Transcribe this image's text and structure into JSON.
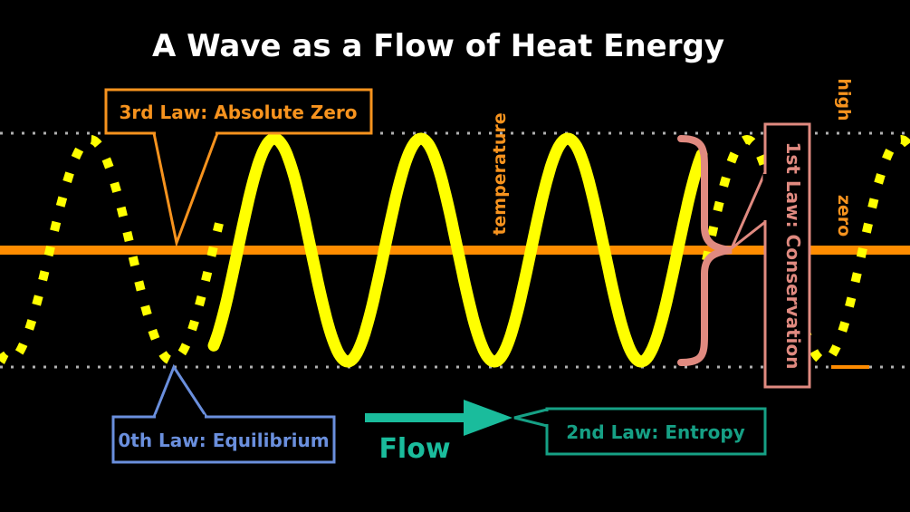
{
  "title": "A Wave as a Flow of Heat Energy",
  "labels": {
    "temperature": "temperature",
    "high": "high",
    "zero": "zero",
    "flow": "Flow"
  },
  "callouts": {
    "third_law": "3rd Law: Absolute Zero",
    "zeroth_law": "0th Law: Equilibrium",
    "second_law": "2nd Law: Entropy",
    "first_law": "1st Law: Conservation"
  },
  "colors": {
    "background": "#000000",
    "wave": "#ffff00",
    "axis": "#ff8c00",
    "third_law": "#f7931e",
    "zeroth_law": "#6a8fdd",
    "second_law": "#16a085",
    "flow": "#1abc9c",
    "first_law": "#e08a80",
    "dotted_guides": "#b0b0b0",
    "title": "#ffffff"
  }
}
